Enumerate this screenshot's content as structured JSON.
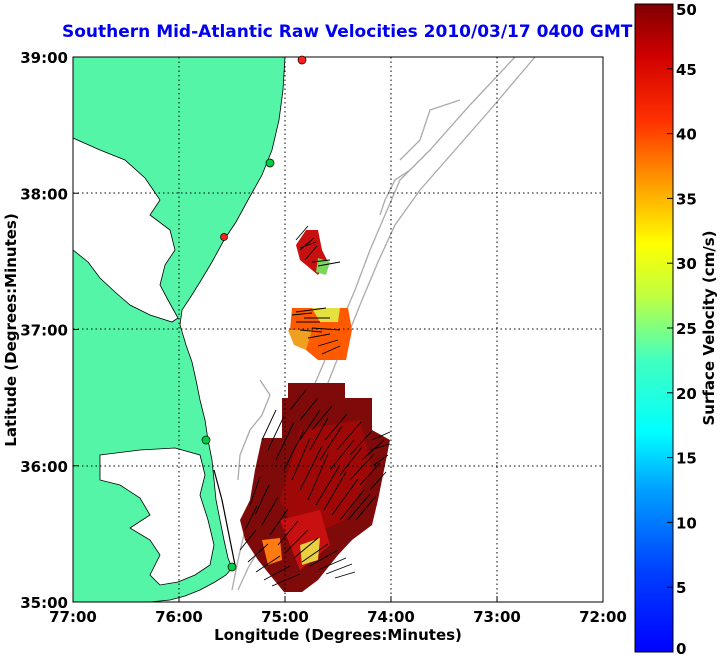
{
  "title": "Southern Mid-Atlantic Raw Velocities 2010/03/17 0400 GMT",
  "x_axis": {
    "label": "Longitude (Degrees:Minutes)",
    "ticks": [
      "77:00",
      "76:00",
      "75:00",
      "74:00",
      "73:00",
      "72:00"
    ]
  },
  "y_axis": {
    "label": "Latitude (Degrees:Minutes)",
    "ticks": [
      "39:00",
      "38:00",
      "37:00",
      "36:00",
      "35:00"
    ]
  },
  "colorbar": {
    "label": "Surface Velocity (cm/s)",
    "ticks": [
      "50",
      "45",
      "40",
      "35",
      "30",
      "25",
      "20",
      "15",
      "10",
      "5",
      "0"
    ],
    "range": [
      0,
      50
    ],
    "colormap": "jet"
  },
  "colors": {
    "title": "#0000ee",
    "land": "#55f5a8",
    "bathymetry": "#aaaaaa",
    "grid": "#000000"
  },
  "stations": [
    {
      "color": "#ff2020"
    },
    {
      "color": "#00cc44"
    },
    {
      "color": "#ff2020"
    },
    {
      "color": "#00cc44"
    },
    {
      "color": "#00cc44"
    }
  ]
}
